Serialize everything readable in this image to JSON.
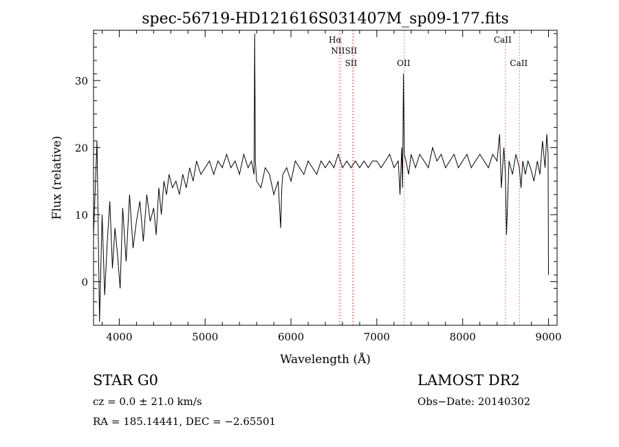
{
  "chart_data": {
    "type": "line",
    "title": "spec-56719-HD121616S031407M_sp09-177.fits",
    "xlabel": "Wavelength (Å)",
    "ylabel": "Flux (relative)",
    "xlim": [
      3700,
      9100
    ],
    "ylim": [
      -6.5,
      37.5
    ],
    "xticks": [
      4000,
      5000,
      6000,
      7000,
      8000,
      9000
    ],
    "yticks": [
      0,
      10,
      20,
      30
    ],
    "grid": false,
    "series": [
      {
        "x": [
          3700,
          3740,
          3770,
          3800,
          3830,
          3860,
          3890,
          3920,
          3950,
          3980,
          4010,
          4040,
          4080,
          4120,
          4160,
          4200,
          4240,
          4280,
          4320,
          4360,
          4400,
          4430,
          4460,
          4490,
          4520,
          4550,
          4580,
          4620,
          4660,
          4700,
          4740,
          4780,
          4820,
          4860,
          4900,
          4950,
          5000,
          5050,
          5100,
          5150,
          5200,
          5250,
          5300,
          5350,
          5400,
          5450,
          5500,
          5540,
          5570,
          5577,
          5585,
          5600,
          5650,
          5700,
          5750,
          5800,
          5850,
          5880,
          5893,
          5905,
          5950,
          6000,
          6050,
          6100,
          6150,
          6200,
          6250,
          6300,
          6350,
          6400,
          6450,
          6500,
          6550,
          6600,
          6650,
          6700,
          6750,
          6800,
          6850,
          6900,
          6950,
          7000,
          7050,
          7100,
          7150,
          7200,
          7250,
          7270,
          7290,
          7300,
          7310,
          7320,
          7340,
          7370,
          7400,
          7450,
          7500,
          7550,
          7600,
          7650,
          7700,
          7750,
          7800,
          7850,
          7900,
          7950,
          8000,
          8050,
          8100,
          8150,
          8200,
          8250,
          8300,
          8350,
          8400,
          8430,
          8450,
          8480,
          8498,
          8510,
          8540,
          8580,
          8620,
          8660,
          8680,
          8700,
          8730,
          8760,
          8790,
          8830,
          8870,
          8900,
          8930,
          8960,
          8980,
          8995,
          9000
        ],
        "y": [
          7,
          21,
          -6,
          10,
          -2,
          6,
          12,
          2,
          8,
          4,
          -1,
          11,
          3,
          13,
          5,
          9,
          12,
          6,
          13,
          9,
          11,
          7,
          14,
          10,
          15,
          13,
          16,
          14,
          15,
          13,
          16,
          14,
          17,
          15,
          18,
          16,
          17,
          18,
          16,
          18,
          17,
          19,
          17,
          18,
          16,
          19,
          17,
          18,
          16,
          37,
          18,
          15,
          14,
          17,
          16,
          13,
          15,
          8,
          14,
          16,
          17,
          15,
          18,
          17,
          16,
          18,
          17,
          16,
          18,
          17,
          18,
          17,
          19,
          17,
          18,
          17,
          18,
          17,
          18,
          17,
          18,
          18,
          17,
          18,
          19,
          17,
          18,
          13,
          20,
          14,
          31,
          19,
          18,
          16,
          19,
          17,
          19,
          18,
          17,
          20,
          18,
          19,
          17,
          18,
          19,
          17,
          18,
          19,
          17,
          18,
          19,
          18,
          17,
          19,
          18,
          22,
          14,
          20,
          16,
          7,
          18,
          16,
          19,
          17,
          14,
          18,
          16,
          18,
          17,
          15,
          18,
          16,
          21,
          17,
          22,
          19,
          1
        ]
      }
    ],
    "lines": [
      {
        "x": 6563,
        "labels": [
          "Hα",
          "NII"
        ]
      },
      {
        "x": 6583,
        "labels": []
      },
      {
        "x": 6716,
        "labels": [
          "SII",
          "SII"
        ]
      },
      {
        "x": 6731,
        "labels": []
      },
      {
        "x": 7320,
        "labels": [
          "OII"
        ]
      },
      {
        "x": 8498,
        "labels": [
          "CaII"
        ]
      },
      {
        "x": 8662,
        "labels": [
          "CaII"
        ]
      }
    ]
  },
  "info": {
    "left_line1": "STAR   G0",
    "left_line2": "cz = 0.0 ± 21.0 km/s",
    "left_line3": "RA = 185.14441, DEC =  −2.65501",
    "right_line1": "LAMOST DR2",
    "right_line2": "Obs−Date: 20140302"
  },
  "colors": {
    "axes": "#000000",
    "spectrum": "#000000",
    "lines": "#e05555"
  }
}
